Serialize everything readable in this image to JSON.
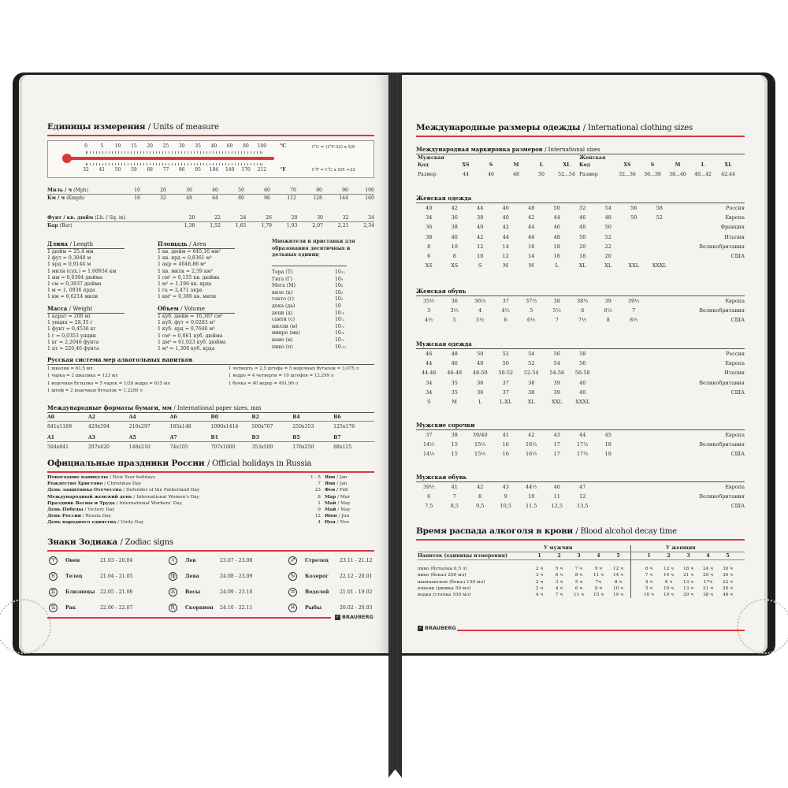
{
  "brand": "BRAUBERG",
  "colors": {
    "accent": "#d8393c",
    "page": "#f5f3ef",
    "cover": "#1d1d1d"
  },
  "units": {
    "title_ru": "Единицы измерения",
    "title_en": "/ Units of measure",
    "thermometer": {
      "celsius": [
        "0",
        "5",
        "10",
        "15",
        "20",
        "25",
        "30",
        "35",
        "40",
        "60",
        "80",
        "100"
      ],
      "fahrenheit": [
        "32",
        "41",
        "50",
        "59",
        "68",
        "77",
        "86",
        "95",
        "104",
        "140",
        "176",
        "212"
      ],
      "c_unit": "°C",
      "f_unit": "°F",
      "formula_c": "t°C = (t°F-32) x 5/9",
      "formula_f": "t°F = t°C x 9/5 +32"
    },
    "speed": [
      {
        "label": "Миль / ч",
        "en": "(Mph)",
        "values": [
          "10",
          "20",
          "30",
          "40",
          "50",
          "60",
          "70",
          "80",
          "90",
          "100"
        ]
      },
      {
        "label": "Км / ч",
        "en": "(Kmph)",
        "values": [
          "16",
          "32",
          "48",
          "64",
          "80",
          "96",
          "112",
          "128",
          "144",
          "160"
        ]
      }
    ],
    "pressure": [
      {
        "label": "Фунт / кв. дюйм",
        "en": "(Lb. / Sq. in)",
        "values": [
          "20",
          "22",
          "24",
          "26",
          "28",
          "30",
          "32",
          "34"
        ]
      },
      {
        "label": "Бар",
        "en": "(Bar)",
        "values": [
          "1,38",
          "1,52",
          "1,65",
          "1,79",
          "1,93",
          "2,07",
          "2,21",
          "2,34"
        ]
      }
    ],
    "length": {
      "title": "Длина",
      "en": "/ Length",
      "items": [
        "1 дюйм = 25,4 мм",
        "1 фут = 0,3048 м",
        "1 ярд = 0,9144 м",
        "1 миля (сух.) = 1,60934 км",
        "1 мм = 0,0394 дюйма",
        "1 см = 0,3937 дюйма",
        "1 м = 1, 0936 ярда",
        "1 км = 0,6214 мили"
      ]
    },
    "weight": {
      "title": "Масса",
      "en": "/ Weight",
      "items": [
        "1 карат = 200 мг",
        "1 унция = 28,35 г",
        "1 фунт = 0,4536 кг",
        "1 г = 0,0353 унции",
        "1 кг = 2,2046 фунта",
        "1 цт = 220,46 фунта"
      ]
    },
    "area": {
      "title": "Площадь",
      "en": "/ Area",
      "items": [
        "1 кв. дюйм = 645,16 мм²",
        "1 кв. ярд = 0,8361 м²",
        "1 акр = 4046,86 м²",
        "1 кв. миля = 2,59 км²",
        "1 см² = 0,155 кв. дюйма",
        "1 м² = 1,196 кв. ярда",
        "1 га = 2,471 акра",
        "1 км² = 0,386 кв. мили"
      ]
    },
    "volume": {
      "title": "Объем",
      "en": "/ Volume",
      "items": [
        "1 куб. дюйм = 16,387 см³",
        "1 куб. фут = 0,0283 м³",
        "1 куб. ярд = 0,7646 м³",
        "1 см³ = 0,061 куб. дюйма",
        "1 дм³ = 61,023 куб. дюйма",
        "1 м³ = 1,308 куб. ярда"
      ]
    },
    "multipliers": {
      "title": "Множители и приставки для образования десятичных и дольных единиц",
      "items": [
        {
          "name": "Тера (Т)",
          "base": "10",
          "exp": "12"
        },
        {
          "name": "Гига (Г)",
          "base": "10",
          "exp": "9"
        },
        {
          "name": "Мега (М)",
          "base": "10",
          "exp": "6"
        },
        {
          "name": "кило (к)",
          "base": "10",
          "exp": "3"
        },
        {
          "name": "гекто (г)",
          "base": "10",
          "exp": "2"
        },
        {
          "name": "дека (да)",
          "base": "10",
          "exp": ""
        },
        {
          "name": "деци (д)",
          "base": "10",
          "exp": "-1"
        },
        {
          "name": "санти (с)",
          "base": "10",
          "exp": "-2"
        },
        {
          "name": "милли (м)",
          "base": "10",
          "exp": "-3"
        },
        {
          "name": "микро (мк)",
          "base": "10",
          "exp": "-6"
        },
        {
          "name": "нано (н)",
          "base": "10",
          "exp": "-9"
        },
        {
          "name": "пико (п)",
          "base": "10",
          "exp": "-12"
        }
      ]
    },
    "russian_alcohol": {
      "title": "Русская система мер алкогольных напитков",
      "left": [
        "1 шкалик = 61,5 мл",
        "1 чарка = 2 шкалика = 123 мл",
        "1 водочная бутылка = 5 чарок = 1/20 ведра = 615 мл",
        "1 штоф = 2 водочных бутылок = 1,2299 л"
      ],
      "right": [
        "1 четверть = 2,5 штофа = 5 водочных бутылок =  3,075 л",
        "1 ведро = 4 четверти = 10 штофов = 12,299 л",
        "1 бочка = 40 ведер = 491,96 л"
      ]
    },
    "paper": {
      "title_ru": "Международные форматы бумаги, мм",
      "title_en": "/ International paper sizes, mm",
      "rows": [
        {
          "names": [
            "A0",
            "A2",
            "A4",
            "A6",
            "B0",
            "B2",
            "B4",
            "B6"
          ],
          "sizes": [
            "841x1189",
            "420x594",
            "210x297",
            "105x148",
            "1000x1414",
            "500x707",
            "250x353",
            "125x176"
          ]
        },
        {
          "names": [
            "A1",
            "A3",
            "A5",
            "A7",
            "B1",
            "B3",
            "B5",
            "B7"
          ],
          "sizes": [
            "594x841",
            "297x420",
            "148x210",
            "74x105",
            "707x1000",
            "353x500",
            "176x250",
            "88x125"
          ]
        }
      ]
    }
  },
  "holidays": {
    "title_ru": "Официальные праздники России",
    "title_en": "/ Official holidays in Russia",
    "items": [
      {
        "ru": "Новогодние каникулы",
        "en": "/ New Year holidays",
        "day": "1 - 5",
        "month_ru": "Янв",
        "month_en": "/ Jan"
      },
      {
        "ru": "Рождество Христово",
        "en": "/ Christmas Day",
        "day": "7",
        "month_ru": "Янв",
        "month_en": "/ Jan"
      },
      {
        "ru": "День защитника Отечества",
        "en": "/ Defender of the Fatherland Day",
        "day": "23",
        "month_ru": "Фев",
        "month_en": "/ Feb"
      },
      {
        "ru": "Международный женский день",
        "en": "/ International Women's Day",
        "day": "8",
        "month_ru": "Мар",
        "month_en": "/ Mar"
      },
      {
        "ru": "Праздник Весны и Труда",
        "en": "/ International Workers' Day",
        "day": "1",
        "month_ru": "Май",
        "month_en": "/ May"
      },
      {
        "ru": "День Победы",
        "en": "/ Victory Day",
        "day": "9",
        "month_ru": "Май",
        "month_en": "/ May"
      },
      {
        "ru": "День России",
        "en": "/ Russia Day",
        "day": "12",
        "month_ru": "Июн",
        "month_en": "/ Jun"
      },
      {
        "ru": "День народного единства",
        "en": "/ Unity Day",
        "day": "4",
        "month_ru": "Ноя",
        "month_en": "/ Nov"
      }
    ]
  },
  "zodiac": {
    "title_ru": "Знаки Зодиака",
    "title_en": "/ Zodiac signs",
    "columns": [
      [
        {
          "icon": "aries",
          "glyph": "♈",
          "name": "Овен",
          "dates": "21.03 - 20.04"
        },
        {
          "icon": "taurus",
          "glyph": "♉",
          "name": "Телец",
          "dates": "21.04 - 21.05"
        },
        {
          "icon": "gemini",
          "glyph": "♊",
          "name": "Близнецы",
          "dates": "22.05 - 21.06"
        },
        {
          "icon": "cancer",
          "glyph": "♋",
          "name": "Рак",
          "dates": "22.06 - 22.07"
        }
      ],
      [
        {
          "icon": "leo",
          "glyph": "♌",
          "name": "Лев",
          "dates": "23.07 - 23.08"
        },
        {
          "icon": "virgo",
          "glyph": "♍",
          "name": "Дева",
          "dates": "24.08 - 23.09"
        },
        {
          "icon": "libra",
          "glyph": "♎",
          "name": "Весы",
          "dates": "24.09 - 23.10"
        },
        {
          "icon": "scorpio",
          "glyph": "♏",
          "name": "Скорпион",
          "dates": "24.10 - 22.11"
        }
      ],
      [
        {
          "icon": "sagittarius",
          "glyph": "♐",
          "name": "Стрелец",
          "dates": "23.11 - 21.12"
        },
        {
          "icon": "capricorn",
          "glyph": "♑",
          "name": "Козерог",
          "dates": "22.12 - 20.01"
        },
        {
          "icon": "aquarius",
          "glyph": "♒",
          "name": "Водолей",
          "dates": "21.01 - 19.02"
        },
        {
          "icon": "pisces",
          "glyph": "♓",
          "name": "Рыбы",
          "dates": "20.02 - 20.03"
        }
      ]
    ]
  },
  "clothing": {
    "title_ru": "Международные размеры одежды",
    "title_en": "/ International clothing sizes",
    "intl": {
      "title_ru": "Международная маркировка размеров",
      "title_en": "/ International sizes",
      "men": {
        "title": "Мужская",
        "code_label": "Код",
        "size_label": "Размер",
        "codes": [
          "XS",
          "S",
          "M",
          "L",
          "XL"
        ],
        "sizes": [
          "44",
          "46",
          "48",
          "50",
          "52...54"
        ]
      },
      "women": {
        "title": "Женская",
        "code_label": "Код",
        "size_label": "Размер",
        "codes": [
          "XS",
          "S",
          "M",
          "L",
          "XL"
        ],
        "sizes": [
          "32...36",
          "36...38",
          "38...40",
          "40...42",
          "42.44"
        ]
      }
    },
    "tables": [
      {
        "title": "Женская одежда",
        "rows": [
          {
            "values": [
              "40",
              "42",
              "44",
              "46",
              "48",
              "50",
              "52",
              "54",
              "56",
              "58"
            ],
            "country": "Россия"
          },
          {
            "values": [
              "34",
              "36",
              "38",
              "40",
              "42",
              "44",
              "46",
              "48",
              "50",
              "52"
            ],
            "country": "Европа"
          },
          {
            "values": [
              "36",
              "38",
              "40",
              "42",
              "44",
              "46",
              "48",
              "50"
            ],
            "country": "Франция"
          },
          {
            "values": [
              "38",
              "40",
              "42",
              "44",
              "46",
              "48",
              "50",
              "52"
            ],
            "country": "Италия"
          },
          {
            "values": [
              "8",
              "10",
              "12",
              "14",
              "16",
              "18",
              "20",
              "22"
            ],
            "country": "Великобритания"
          },
          {
            "values": [
              "6",
              "8",
              "10",
              "12",
              "14",
              "16",
              "18",
              "20"
            ],
            "country": "США"
          },
          {
            "values": [
              "XS",
              "XS",
              "S",
              "M",
              "M",
              "L",
              "XL",
              "XL",
              "XXL",
              "XXXL"
            ],
            "country": ""
          }
        ]
      },
      {
        "title": "Женская обувь",
        "rows": [
          {
            "values": [
              "35½",
              "36",
              "36½",
              "37",
              "37½",
              "38",
              "38½",
              "39",
              "39½"
            ],
            "country": "Европа"
          },
          {
            "values": [
              "3",
              "3½",
              "4",
              "4½",
              "5",
              "5½",
              "6",
              "6½",
              "7"
            ],
            "country": "Великобритания"
          },
          {
            "values": [
              "4½",
              "5",
              "5½",
              "6",
              "6½",
              "7",
              "7½",
              "8",
              "8½"
            ],
            "country": "США"
          }
        ]
      },
      {
        "title": "Мужская одежда",
        "rows": [
          {
            "values": [
              "46",
              "48",
              "50",
              "52",
              "54",
              "56",
              "58"
            ],
            "country": "Россия"
          },
          {
            "values": [
              "44",
              "46",
              "48",
              "50",
              "52",
              "54",
              "56"
            ],
            "country": "Европа"
          },
          {
            "values": [
              "44-46",
              "46-48",
              "48-50",
              "50-52",
              "52-54",
              "54-56",
              "56-58"
            ],
            "country": "Италия"
          },
          {
            "values": [
              "34",
              "35",
              "36",
              "37",
              "38",
              "39",
              "40"
            ],
            "country": "Великобритания"
          },
          {
            "values": [
              "34",
              "35",
              "36",
              "37",
              "38",
              "39",
              "40"
            ],
            "country": "США"
          },
          {
            "values": [
              "S",
              "M",
              "L",
              "L-XL",
              "XL",
              "XXL",
              "XXXL"
            ],
            "country": ""
          }
        ]
      },
      {
        "title": "Мужские сорочки",
        "rows": [
          {
            "values": [
              "37",
              "38",
              "39/40",
              "41",
              "42",
              "43",
              "44",
              "45"
            ],
            "country": "Европа"
          },
          {
            "values": [
              "14½",
              "15",
              "15½",
              "16",
              "16½",
              "17",
              "17½",
              "18"
            ],
            "country": "Великобритания"
          },
          {
            "values": [
              "14½",
              "15",
              "15½",
              "16",
              "16½",
              "17",
              "17½",
              "18"
            ],
            "country": "США"
          }
        ]
      },
      {
        "title": "Мужская обувь",
        "rows": [
          {
            "values": [
              "39½",
              "41",
              "42",
              "43",
              "44½",
              "46",
              "47"
            ],
            "country": "Европа"
          },
          {
            "values": [
              "6",
              "7",
              "8",
              "9",
              "10",
              "11",
              "12"
            ],
            "country": "Великобритания"
          },
          {
            "values": [
              "7,5",
              "8,5",
              "9,5",
              "10,5",
              "11,5",
              "12,5",
              "13,5"
            ],
            "country": "США"
          }
        ]
      }
    ]
  },
  "alcohol": {
    "title_ru": "Время распада алкоголя в крови",
    "title_en": "/ Blood alcohol decay time",
    "men_label": "У мужчин",
    "women_label": "У женщин",
    "drink_header": "Напиток (единицы измерения)",
    "columns": [
      "1",
      "2",
      "3",
      "4",
      "5"
    ],
    "rows": [
      {
        "drink": "пиво (бутылка 0,5 л)",
        "men": [
          "2 ч",
          "5 ч",
          "7 ч",
          "9 ч",
          "12 ч"
        ],
        "women": [
          "6 ч",
          "12 ч",
          "18 ч",
          "24 ч",
          "30 ч"
        ]
      },
      {
        "drink": "вино (бокал 200 мл)",
        "men": [
          "3 ч",
          "6 ч",
          "8 ч",
          "11 ч",
          "14 ч"
        ],
        "women": [
          "7 ч",
          "14 ч",
          "21 ч",
          "29 ч",
          "36 ч"
        ]
      },
      {
        "drink": "шампанское (бокал 150 мл)",
        "men": [
          "2 ч",
          "3 ч",
          "5 ч",
          "7ч",
          "8 ч"
        ],
        "women": [
          "4 ч",
          "8 ч",
          "13 ч",
          "17ч",
          "22 ч"
        ]
      },
      {
        "drink": "коньяк (рюмка 50 мл)",
        "men": [
          "2 ч",
          "4 ч",
          "6 ч",
          "8 ч",
          "10 ч"
        ],
        "women": [
          "5 ч",
          "10 ч",
          "13 ч",
          "21 ч",
          "26 ч"
        ]
      },
      {
        "drink": "водка (стопка 100 мл)",
        "men": [
          "4 ч",
          "7 ч",
          "11 ч",
          "15 ч",
          "19 ч"
        ],
        "women": [
          "10 ч",
          "19 ч",
          "29 ч",
          "38 ч",
          "48 ч"
        ]
      }
    ]
  }
}
